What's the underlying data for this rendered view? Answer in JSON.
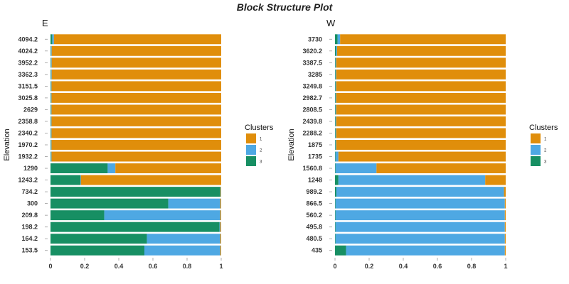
{
  "title": "Block Structure Plot",
  "colors": {
    "1": "#E08E0B",
    "2": "#4EA8E3",
    "3": "#178F63",
    "separator": "#ffffff",
    "tick": "#999999"
  },
  "chart_data": [
    {
      "type": "bar",
      "orientation": "horizontal",
      "stacked": true,
      "panel_title": "E",
      "ylabel": "Elevation",
      "xlabel": "",
      "xlim": [
        0,
        1
      ],
      "xticks": [
        "0",
        "0.2",
        "0.4",
        "0.6",
        "0.8",
        "1"
      ],
      "categories": [
        "4094.2",
        "4024.2",
        "3952.2",
        "3362.3",
        "3151.5",
        "3025.8",
        "2629",
        "2358.8",
        "2340.2",
        "1970.2",
        "1932.2",
        "1290",
        "1243.2",
        "734.2",
        "300",
        "209.8",
        "198.2",
        "164.2",
        "153.5"
      ],
      "series": [
        {
          "name": "3",
          "values": [
            0.01,
            0.003,
            0.003,
            0.003,
            0.003,
            0.003,
            0.003,
            0.003,
            0.003,
            0.003,
            0.003,
            0.335,
            0.175,
            0.995,
            0.69,
            0.315,
            0.99,
            0.565,
            0.55
          ]
        },
        {
          "name": "2",
          "values": [
            0.01,
            0.004,
            0.004,
            0.004,
            0.003,
            0.003,
            0.003,
            0.003,
            0.003,
            0.003,
            0.003,
            0.045,
            0.003,
            0.002,
            0.305,
            0.68,
            0.005,
            0.43,
            0.445
          ]
        },
        {
          "name": "1",
          "values": [
            0.98,
            0.993,
            0.993,
            0.993,
            0.994,
            0.994,
            0.994,
            0.994,
            0.994,
            0.994,
            0.994,
            0.62,
            0.822,
            0.003,
            0.005,
            0.005,
            0.005,
            0.005,
            0.005
          ]
        }
      ],
      "legend_title": "Clusters",
      "legend_items": [
        "1",
        "2",
        "3"
      ]
    },
    {
      "type": "bar",
      "orientation": "horizontal",
      "stacked": true,
      "panel_title": "W",
      "ylabel": "Elevation",
      "xlabel": "",
      "xlim": [
        0,
        1
      ],
      "xticks": [
        "0",
        "0.2",
        "0.4",
        "0.6",
        "0.8",
        "1"
      ],
      "categories": [
        "3730",
        "3620.2",
        "3387.5",
        "3285",
        "3249.8",
        "2982.7",
        "2808.5",
        "2439.8",
        "2288.2",
        "1875",
        "1735",
        "1560.8",
        "1248",
        "989.2",
        "866.5",
        "560.2",
        "495.8",
        "480.5",
        "435"
      ],
      "series": [
        {
          "name": "3",
          "values": [
            0.015,
            0.006,
            0.003,
            0.003,
            0.003,
            0.003,
            0.003,
            0.003,
            0.003,
            0.003,
            0.003,
            0.003,
            0.02,
            0.008,
            0.003,
            0.003,
            0.003,
            0.003,
            0.065
          ]
        },
        {
          "name": "2",
          "values": [
            0.015,
            0.006,
            0.004,
            0.004,
            0.004,
            0.004,
            0.004,
            0.004,
            0.004,
            0.004,
            0.017,
            0.24,
            0.86,
            0.982,
            0.992,
            0.992,
            0.992,
            0.992,
            0.93
          ]
        },
        {
          "name": "1",
          "values": [
            0.97,
            0.988,
            0.993,
            0.993,
            0.993,
            0.993,
            0.993,
            0.993,
            0.993,
            0.993,
            0.98,
            0.757,
            0.12,
            0.01,
            0.005,
            0.005,
            0.005,
            0.005,
            0.005
          ]
        }
      ],
      "legend_title": "Clusters",
      "legend_items": [
        "1",
        "2",
        "3"
      ]
    }
  ]
}
